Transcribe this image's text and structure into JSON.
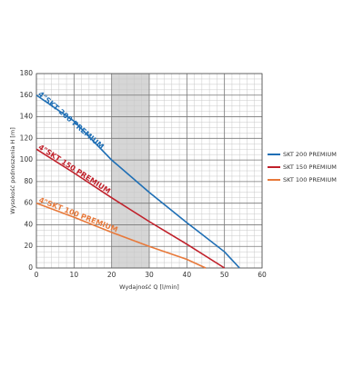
{
  "chart_data": {
    "type": "line",
    "xlabel": "Wydajność Q [l/min]",
    "ylabel": "Wysokość podnoszenia H [m]",
    "xlim": [
      0,
      60
    ],
    "ylim": [
      0,
      180
    ],
    "xticks": [
      0,
      10,
      20,
      30,
      40,
      50,
      60
    ],
    "yticks": [
      0,
      20,
      40,
      60,
      80,
      100,
      120,
      140,
      160,
      180
    ],
    "grid": true,
    "shaded_xrange": [
      20,
      30
    ],
    "legend": "right",
    "series": [
      {
        "name": "SKT 200 PREMIUM",
        "curve_label": "4\"SKT 200 PREMIUM",
        "color": "#1f6fb5",
        "x": [
          0,
          10,
          20,
          30,
          40,
          50,
          54
        ],
        "values": [
          160,
          136,
          100,
          70,
          42,
          15,
          0
        ]
      },
      {
        "name": "SKT 150 PREMIUM",
        "curve_label": "4\"SKT 150 PREMIUM",
        "color": "#c0202a",
        "x": [
          0,
          10,
          20,
          30,
          40,
          50
        ],
        "values": [
          110,
          88,
          65,
          43,
          22,
          0
        ]
      },
      {
        "name": "SKT 100 PREMIUM",
        "curve_label": "4\"SKT 100 PREMIUM",
        "color": "#e8793a",
        "x": [
          0,
          10,
          20,
          30,
          40,
          45
        ],
        "values": [
          60,
          47,
          33,
          20,
          8,
          0
        ]
      }
    ]
  }
}
